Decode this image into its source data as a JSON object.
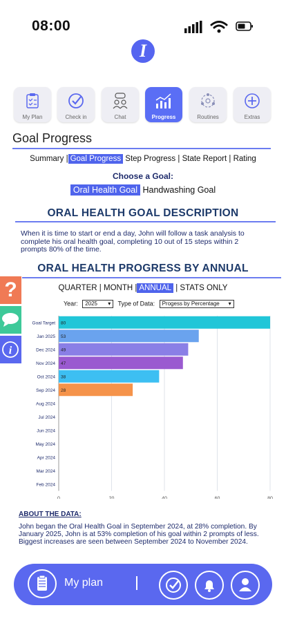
{
  "status": {
    "time": "08:00"
  },
  "nav": {
    "tiles": [
      {
        "label": "My Plan"
      },
      {
        "label": "Check in"
      },
      {
        "label": "Chat"
      },
      {
        "label": "Progress"
      },
      {
        "label": "Routines"
      },
      {
        "label": "Extras"
      }
    ],
    "active": "Progress"
  },
  "page_title": "Goal Progress",
  "subtabs": {
    "summary": "Summary",
    "goal_progress": "Goal Progress",
    "step_progress": "Step Progress",
    "state_report": "State Report",
    "rating": "Rating",
    "sep": "|"
  },
  "choose_goal": {
    "heading": "Choose a Goal:",
    "options": [
      "Oral Health Goal",
      "Handwashing Goal"
    ]
  },
  "description": {
    "heading": "ORAL HEALTH GOAL DESCRIPTION",
    "text": "When it is time to start or end a day, John will follow a task analysis to complete his oral health goal, completing 10 out of 15 steps within 2 prompts 80% of the time."
  },
  "progress": {
    "heading": "ORAL HEALTH PROGRESS BY ANNUAL",
    "periods": {
      "quarter": "QUARTER",
      "month": "MONTH",
      "annual": "ANNUAL",
      "stats": "STATS ONLY",
      "sep": "|"
    },
    "filters": {
      "year_label": "Year:",
      "year_value": "2025",
      "type_label": "Type of Data:",
      "type_value": "Progess by Percentage"
    }
  },
  "chart_data": {
    "type": "bar",
    "orientation": "horizontal",
    "categories": [
      "Goal Target",
      "Jan 2025",
      "Dec 2024",
      "Nov 2024",
      "Oct 2024",
      "Sep 2024",
      "Aug 2024",
      "Jul 2024",
      "Jun 2024",
      "May 2024",
      "Apr 2024",
      "Mar 2024",
      "Feb 2024"
    ],
    "values": [
      80,
      53,
      49,
      47,
      38,
      28,
      null,
      null,
      null,
      null,
      null,
      null,
      null
    ],
    "colors": [
      "#21c6d8",
      "#6aa3ee",
      "#8a7fe6",
      "#9a5ad0",
      "#3dbff2",
      "#f5934a"
    ],
    "xlim": [
      0,
      80
    ],
    "xticks": [
      0,
      20,
      40,
      60,
      80
    ],
    "grid": true
  },
  "about": {
    "heading": "ABOUT THE DATA:",
    "text": "John began the Oral Health Goal in September 2024, at 28% completion. By January 2025, John is at 53% completion of his goal within 2 prompts of less.  Biggest increases are seen between September 2024 to November 2024."
  },
  "bottom": {
    "my_plan": "My plan"
  },
  "colors": {
    "accent": "#5a68ef",
    "heading": "#1d3a6a"
  }
}
